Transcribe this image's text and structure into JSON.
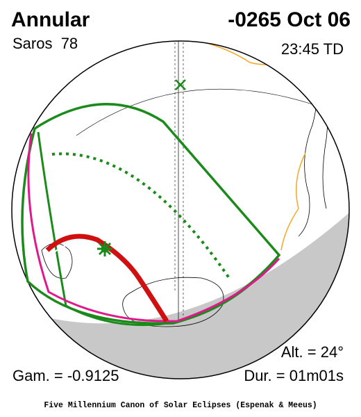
{
  "header": {
    "type": "Annular",
    "date": "-0265 Oct 06",
    "saros": "Saros  78",
    "time": "23:45 TD"
  },
  "stats": {
    "altitude": "Alt. = 24°",
    "gamma": "Gam. = -0.9125",
    "duration": "Dur. = 01m01s"
  },
  "footer": {
    "credit": "Five Millennium Canon of Solar Eclipses (Espenak & Meeus)"
  }
}
